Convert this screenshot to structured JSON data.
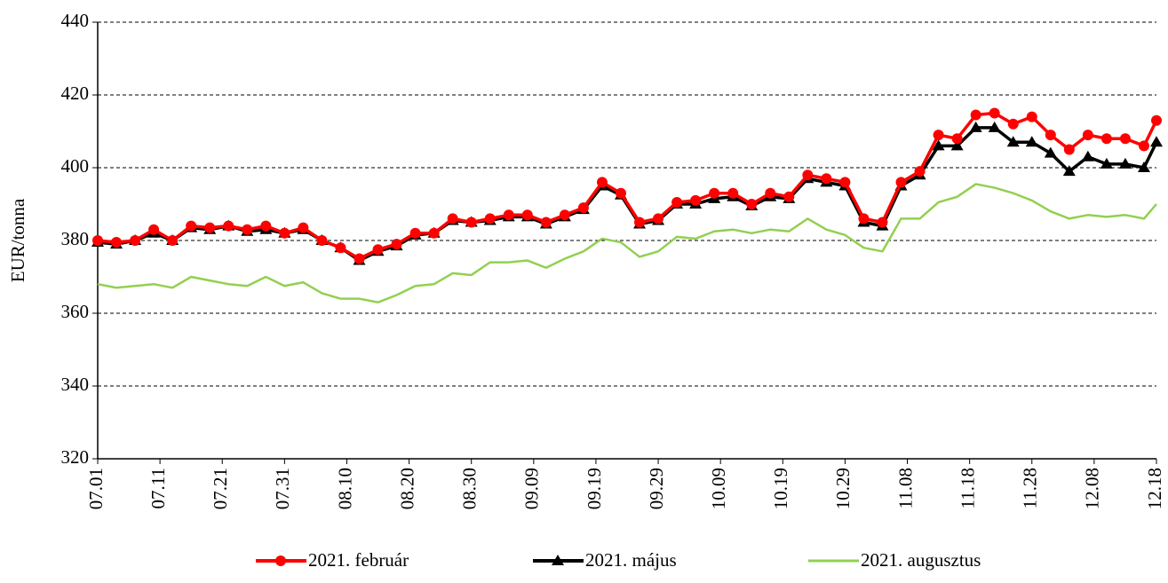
{
  "chart_data": {
    "type": "line",
    "y_label": "EUR/tonna",
    "x": [
      "07.01",
      "07.04",
      "07.07",
      "07.10",
      "07.13",
      "07.16",
      "07.19",
      "07.22",
      "07.25",
      "07.28",
      "07.31",
      "08.03",
      "08.06",
      "08.09",
      "08.12",
      "08.15",
      "08.18",
      "08.21",
      "08.24",
      "08.27",
      "08.30",
      "09.02",
      "09.05",
      "09.08",
      "09.11",
      "09.14",
      "09.17",
      "09.20",
      "09.23",
      "09.26",
      "09.29",
      "10.02",
      "10.05",
      "10.08",
      "10.11",
      "10.14",
      "10.17",
      "10.20",
      "10.23",
      "10.26",
      "10.29",
      "11.01",
      "11.04",
      "11.07",
      "11.10",
      "11.13",
      "11.16",
      "11.19",
      "11.22",
      "11.25",
      "11.28",
      "12.01",
      "12.04",
      "12.07",
      "12.10",
      "12.13",
      "12.16",
      "12.18"
    ],
    "series": [
      {
        "name": "2021. február",
        "color": "#ff0000",
        "marker": "circle",
        "values": [
          380,
          379.5,
          380,
          383,
          380,
          384,
          383.5,
          384,
          383,
          384,
          382,
          383.5,
          380,
          378,
          375,
          377.5,
          379,
          382,
          382,
          386,
          385,
          386,
          387,
          387,
          385,
          387,
          389,
          396,
          393,
          385,
          386,
          390.5,
          391,
          393,
          393,
          390,
          393,
          392,
          398,
          397,
          396,
          386,
          385,
          396,
          399,
          409,
          408,
          414.5,
          415,
          412,
          414,
          409,
          405,
          409,
          408,
          408,
          406,
          413
        ]
      },
      {
        "name": "2021. május",
        "color": "#000000",
        "marker": "triangle",
        "values": [
          379.5,
          379,
          380,
          382,
          380,
          383.5,
          383,
          384,
          382.5,
          383,
          382,
          383,
          380,
          378,
          374.5,
          377,
          378.5,
          381.5,
          382,
          385.5,
          385,
          385.5,
          386.5,
          386.5,
          384.5,
          386.5,
          388.5,
          395,
          392.5,
          384.5,
          385.5,
          390,
          390,
          391.5,
          392,
          389.5,
          392,
          391.5,
          397,
          396,
          395,
          385,
          384,
          395,
          398,
          406,
          406,
          411,
          411,
          407,
          407,
          404,
          399,
          403,
          401,
          401,
          400,
          407
        ]
      },
      {
        "name": "2021. augusztus",
        "color": "#92d050",
        "marker": "none",
        "values": [
          368,
          367,
          367.5,
          368,
          367,
          370,
          369,
          368,
          367.5,
          370,
          367.5,
          368.5,
          365.5,
          364,
          364,
          363,
          365,
          367.5,
          368,
          371,
          370.5,
          374,
          374,
          374.5,
          372.5,
          375,
          377,
          380.5,
          379.5,
          375.5,
          377,
          381,
          380.5,
          382.5,
          383,
          382,
          383,
          382.5,
          386,
          383,
          381.5,
          378,
          377,
          386,
          386,
          390.5,
          392,
          395.5,
          394.5,
          393,
          391,
          388,
          386,
          387,
          386.5,
          387,
          386,
          390
        ]
      }
    ],
    "ylim": [
      320,
      440
    ],
    "yticks": [
      320,
      340,
      360,
      380,
      400,
      420,
      440
    ],
    "xlim": [
      "07.01",
      "12.18"
    ],
    "xticks": [
      "07.01",
      "07.11",
      "07.21",
      "07.31",
      "08.10",
      "08.20",
      "08.30",
      "09.09",
      "09.19",
      "09.29",
      "10.09",
      "10.19",
      "10.29",
      "11.08",
      "11.18",
      "11.28",
      "12.08",
      "12.18"
    ],
    "grid": true,
    "legend": "bottom"
  }
}
